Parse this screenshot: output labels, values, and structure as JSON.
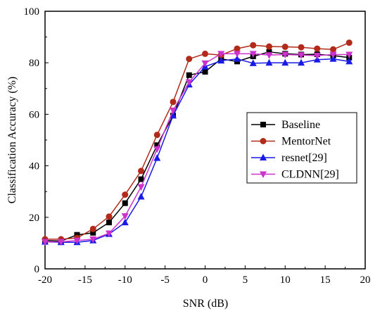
{
  "chart_data": {
    "type": "line",
    "title": "",
    "xlabel": "SNR (dB)",
    "ylabel": "Classification Accuracy (%)",
    "xlim": [
      -20,
      20
    ],
    "ylim": [
      0,
      100
    ],
    "xticks": [
      -20,
      -15,
      -10,
      -5,
      0,
      5,
      10,
      15,
      20
    ],
    "yticks": [
      0,
      20,
      40,
      60,
      80,
      100
    ],
    "grid": false,
    "legend_position": "right",
    "x": [
      -20,
      -18,
      -16,
      -14,
      -12,
      -10,
      -8,
      -6,
      -4,
      -2,
      0,
      2,
      4,
      6,
      8,
      10,
      12,
      14,
      16,
      18
    ],
    "series": [
      {
        "name": "Baseline",
        "color": "#000000",
        "marker": "square",
        "values": [
          11.0,
          10.8,
          13.2,
          14.0,
          18.0,
          25.5,
          34.8,
          48.0,
          59.5,
          75.2,
          76.5,
          81.5,
          80.5,
          82.5,
          84.2,
          83.5,
          83.2,
          83.3,
          82.8,
          82.0
        ]
      },
      {
        "name": "MentorNet",
        "color": "#b22a1a",
        "marker": "circle",
        "values": [
          11.5,
          11.5,
          12.0,
          15.5,
          20.3,
          28.8,
          38.0,
          52.0,
          64.8,
          81.5,
          83.5,
          83.0,
          85.5,
          86.8,
          86.3,
          86.2,
          86.0,
          85.5,
          85.2,
          87.8
        ]
      },
      {
        "name": "resnet[29]",
        "color": "#1a1ae6",
        "marker": "triangle-up",
        "values": [
          10.5,
          10.3,
          10.3,
          11.0,
          13.5,
          18.0,
          28.0,
          43.0,
          59.5,
          71.5,
          78.5,
          80.8,
          81.5,
          79.8,
          80.0,
          80.0,
          80.0,
          81.2,
          81.5,
          80.5
        ]
      },
      {
        "name": "CLDNN[29]",
        "color": "#cc33cc",
        "marker": "triangle-down",
        "values": [
          10.5,
          10.5,
          11.0,
          11.5,
          13.8,
          20.5,
          31.8,
          46.5,
          61.5,
          72.5,
          79.8,
          83.5,
          83.5,
          83.5,
          83.0,
          83.2,
          83.0,
          82.8,
          83.2,
          83.2
        ]
      }
    ]
  }
}
